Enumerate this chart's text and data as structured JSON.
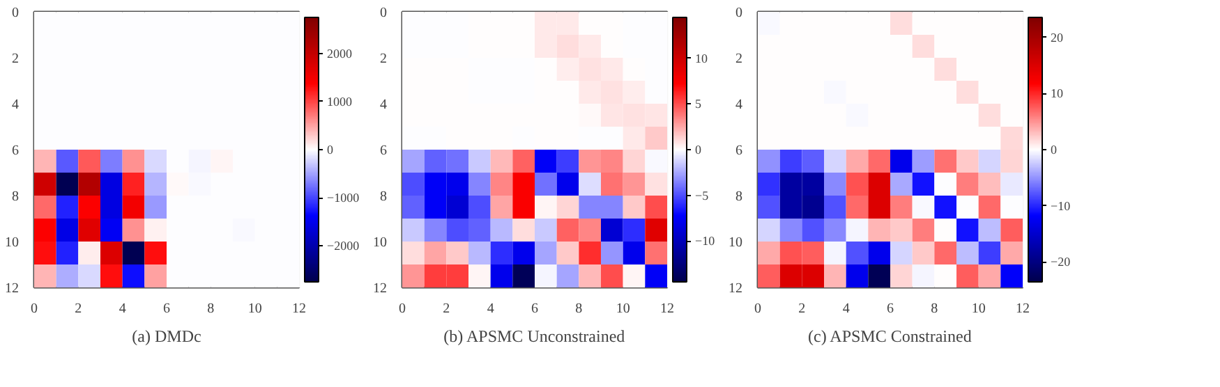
{
  "chart_data": [
    {
      "type": "heatmap",
      "title": "(a) DMDc",
      "xlim": [
        0,
        12
      ],
      "ylim": [
        12,
        0
      ],
      "xticks": [
        0,
        2,
        4,
        6,
        8,
        10,
        12
      ],
      "yticks": [
        0,
        2,
        4,
        6,
        8,
        10,
        12
      ],
      "clim": [
        -2750,
        2750
      ],
      "cticks": [
        {
          "value": -2000,
          "label": "−2000"
        },
        {
          "value": -1000,
          "label": "−1000"
        },
        0,
        1000,
        2000
      ],
      "cells": [
        [
          -10,
          -10,
          -10,
          -10,
          -10,
          0,
          0,
          -10,
          0,
          -10,
          -10,
          0
        ],
        [
          -10,
          -10,
          -10,
          -10,
          -10,
          0,
          -10,
          0,
          0,
          -10,
          0,
          -10
        ],
        [
          -10,
          -10,
          -10,
          -10,
          -10,
          0,
          0,
          0,
          0,
          0,
          -10,
          0
        ],
        [
          -10,
          -10,
          -10,
          -10,
          -10,
          0,
          0,
          0,
          -10,
          0,
          -10,
          0
        ],
        [
          -10,
          -10,
          -10,
          -10,
          -10,
          0,
          0,
          0,
          -10,
          0,
          -10,
          0
        ],
        [
          -10,
          -10,
          -10,
          -10,
          0,
          0,
          0,
          0,
          0,
          0,
          -10,
          0
        ],
        [
          400,
          -900,
          900,
          -700,
          600,
          -200,
          0,
          -50,
          50,
          0,
          0,
          0
        ],
        [
          1900,
          -2700,
          2200,
          -1600,
          1200,
          -400,
          30,
          -40,
          0,
          0,
          0,
          0
        ],
        [
          800,
          -1200,
          1400,
          -1600,
          1500,
          -550,
          0,
          0,
          0,
          0,
          0,
          0
        ],
        [
          1400,
          -1550,
          1700,
          -1450,
          600,
          80,
          0,
          0,
          0,
          -40,
          0,
          0
        ],
        [
          1300,
          -1200,
          100,
          1750,
          -2700,
          1300,
          0,
          0,
          0,
          0,
          0,
          0
        ],
        [
          400,
          -450,
          -200,
          1300,
          -1300,
          500,
          0,
          0,
          0,
          0,
          0,
          0
        ]
      ]
    },
    {
      "type": "heatmap",
      "title": "(b) APSMC Unconstrained",
      "xlim": [
        0,
        12
      ],
      "ylim": [
        12,
        0
      ],
      "xticks": [
        0,
        2,
        4,
        6,
        8,
        10,
        12
      ],
      "yticks": [
        0,
        2,
        4,
        6,
        8,
        10,
        12
      ],
      "clim": [
        -14.5,
        14.5
      ],
      "cticks": [
        {
          "value": -10,
          "label": "−10"
        },
        {
          "value": -5,
          "label": "−5"
        },
        0,
        5,
        10
      ],
      "cells": [
        [
          -0.1,
          -0.1,
          -0.1,
          0,
          0,
          0,
          0.6,
          0.6,
          0,
          0,
          -0.1,
          -0.1
        ],
        [
          -0.1,
          -0.1,
          -0.1,
          0,
          0,
          0,
          0.6,
          1.0,
          0.6,
          0,
          -0.1,
          -0.1
        ],
        [
          0,
          0,
          0,
          -0.1,
          -0.1,
          -0.1,
          0,
          0.5,
          0.9,
          0.6,
          0,
          -0.1
        ],
        [
          0,
          0,
          0,
          -0.1,
          -0.1,
          -0.1,
          0,
          0,
          0.6,
          0.9,
          0.5,
          -0.1
        ],
        [
          0,
          0,
          0,
          0,
          0,
          0,
          0,
          0,
          0.2,
          0.7,
          0.8,
          0.7
        ],
        [
          -0.1,
          -0.1,
          0,
          0,
          0,
          -0.1,
          0,
          0,
          -0.1,
          -0.1,
          0.6,
          1.5
        ],
        [
          -2.5,
          -4.5,
          -4,
          -1.5,
          2,
          4.5,
          -7.5,
          -5.5,
          3,
          3.5,
          1.2,
          -0.2
        ],
        [
          -5,
          -7.5,
          -8,
          -3.5,
          3.5,
          7.5,
          -4,
          -8,
          -1,
          4,
          3,
          0.8
        ],
        [
          -4.5,
          -7.5,
          -9,
          -5,
          2.5,
          7.5,
          0.3,
          1.2,
          -3.5,
          -3.5,
          1.5,
          5
        ],
        [
          -1.5,
          -3.5,
          -5,
          -4.5,
          -2,
          1,
          -1.5,
          4.5,
          3.5,
          -9,
          -6,
          9
        ],
        [
          1,
          2.5,
          1.5,
          -2,
          -6,
          -8,
          -2.5,
          1.5,
          6,
          -3,
          -8,
          4
        ],
        [
          3,
          5.5,
          5.5,
          0.3,
          -8,
          -14,
          -0.3,
          -2.5,
          2,
          5,
          0.3,
          -7.5
        ]
      ]
    },
    {
      "type": "heatmap",
      "title": "(c) APSMC Constrained",
      "xlim": [
        0,
        12
      ],
      "ylim": [
        12,
        0
      ],
      "xticks": [
        0,
        2,
        4,
        6,
        8,
        10,
        12
      ],
      "yticks": [
        0,
        2,
        4,
        6,
        8,
        10,
        12
      ],
      "clim": [
        -23.6,
        23.6
      ],
      "cticks": [
        {
          "value": -20,
          "label": "−20"
        },
        {
          "value": -10,
          "label": "−10"
        },
        0,
        10,
        20
      ],
      "cells": [
        [
          -0.2,
          0,
          0,
          0,
          0,
          0,
          1.5,
          0,
          0,
          0,
          0,
          0
        ],
        [
          0,
          0,
          0,
          0,
          0,
          0,
          0,
          1.5,
          0,
          0,
          0,
          0
        ],
        [
          0,
          0,
          0,
          0,
          0,
          0,
          0,
          0,
          1.5,
          0,
          0,
          0
        ],
        [
          0,
          0,
          0,
          -0.2,
          0,
          0,
          0,
          0,
          0,
          1.5,
          0,
          0
        ],
        [
          0,
          0,
          0,
          0,
          -0.2,
          0,
          0,
          0,
          0,
          0,
          1.5,
          0
        ],
        [
          0,
          0,
          0,
          0,
          0,
          0,
          0,
          0,
          0,
          0,
          0,
          1.8
        ],
        [
          -5,
          -9,
          -7.5,
          -2,
          4,
          7,
          -13,
          -4.5,
          6.5,
          2.5,
          -2,
          2
        ],
        [
          -9.5,
          -18,
          -18,
          -5.5,
          8,
          15,
          -4,
          -11,
          -0.1,
          6,
          3,
          -1
        ],
        [
          -8,
          -18,
          -19,
          -8,
          7,
          15,
          6,
          -0.2,
          -11,
          -0.1,
          7,
          -0.1
        ],
        [
          -2,
          -5.5,
          -8,
          -5.5,
          -0.5,
          3.5,
          2.5,
          6,
          0,
          -11,
          -3,
          7.5
        ],
        [
          4,
          8,
          7.5,
          -0.5,
          -8,
          -13,
          -2,
          2.5,
          7,
          -3,
          -9,
          4
        ],
        [
          7.5,
          15,
          15,
          3.5,
          -13,
          -23,
          2,
          -0.5,
          0,
          7.5,
          4,
          -12
        ]
      ]
    }
  ]
}
